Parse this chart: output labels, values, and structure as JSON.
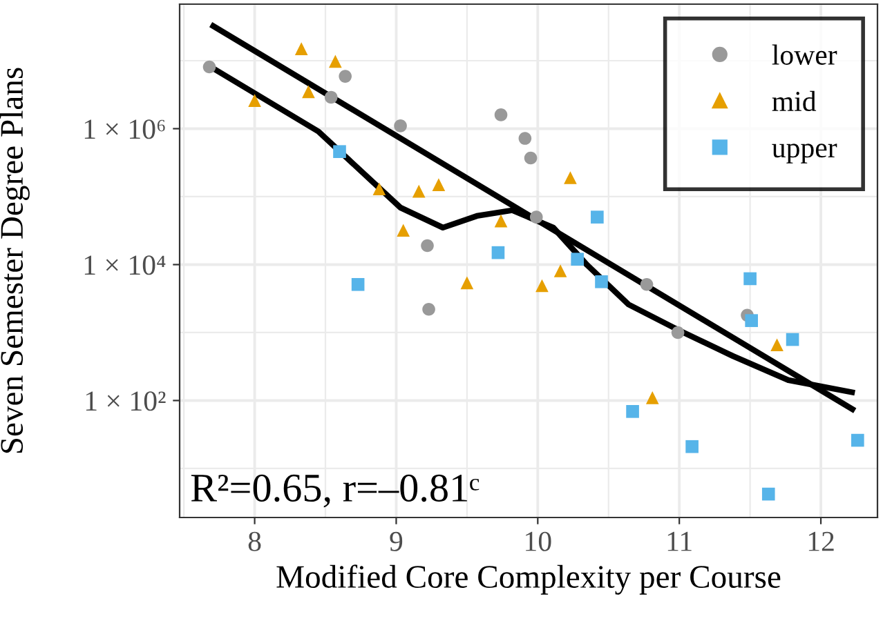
{
  "chart_data": {
    "type": "scatter",
    "xlabel": "Modified Core Complexity per Course",
    "ylabel": "Seven Semester Degree Plans",
    "xlim": [
      7.47,
      12.4
    ],
    "ylim": [
      1.9,
      68000000
    ],
    "xticks": [
      {
        "value": 7.5,
        "label": null
      },
      8,
      {
        "value": 8.5,
        "label": null
      },
      9,
      {
        "value": 9.5,
        "label": null
      },
      10,
      {
        "value": 10.5,
        "label": null
      },
      11,
      {
        "value": 11.5,
        "label": null
      },
      12
    ],
    "yticks": [
      {
        "value": 10,
        "label": null
      },
      {
        "value": 100,
        "label": "1 × 10²"
      },
      {
        "value": 1000,
        "label": null
      },
      {
        "value": 10000,
        "label": "1 × 10⁴"
      },
      {
        "value": 100000,
        "label": null
      },
      {
        "value": 1000000,
        "label": "1 × 10⁶"
      },
      {
        "value": 10000000,
        "label": null
      }
    ],
    "log": "y",
    "grid": true,
    "legend": "top right",
    "series": [
      {
        "name": "lower",
        "color": "#999999",
        "marker": "circle",
        "x": [
          7.68,
          8.54,
          8.64,
          9.03,
          9.74,
          9.91,
          9.95,
          9.99,
          9.22,
          9.23,
          10.77,
          11.48,
          10.99
        ],
        "values": [
          8100000,
          2900000,
          5900000,
          1100000,
          1600000,
          720000,
          370000,
          50000,
          19000,
          2200,
          5100,
          1800,
          1000
        ]
      },
      {
        "name": "mid",
        "color": "#E69F00",
        "marker": "triangle",
        "x": [
          8.0,
          8.33,
          8.38,
          8.57,
          8.88,
          9.05,
          9.16,
          9.3,
          9.74,
          9.5,
          10.03,
          10.16,
          10.23,
          10.81,
          11.69
        ],
        "values": [
          2600000,
          15000000,
          3500000,
          9800000,
          130000,
          32000,
          120000,
          150000,
          44000,
          5400,
          4900,
          8100,
          190000,
          110,
          660
        ]
      },
      {
        "name": "upper",
        "color": "#56B4E9",
        "marker": "square",
        "x": [
          8.6,
          8.73,
          9.72,
          10.42,
          10.28,
          10.45,
          11.5,
          11.51,
          11.8,
          10.67,
          11.09,
          11.63,
          12.26
        ],
        "values": [
          460000,
          5100,
          15000,
          50000,
          12000,
          5600,
          6200,
          1500,
          790,
          69,
          21,
          4.2,
          26
        ]
      },
      {
        "type": "line",
        "color": "#000000",
        "marker": "none",
        "x": [
          7.69,
          12.24
        ],
        "values": [
          34000000,
          71
        ]
      },
      {
        "type": "line",
        "color": "#000000",
        "marker": "none",
        "x": [
          7.69,
          8.45,
          9.03,
          9.33,
          9.57,
          9.82,
          10.11,
          10.35,
          10.64,
          10.99,
          11.38,
          11.77,
          12.24
        ],
        "values": [
          8100000,
          910000,
          69000,
          35000,
          52000,
          63000,
          35000,
          9800,
          2600,
          1100,
          450,
          200,
          130
        ]
      }
    ],
    "annotations": [
      {
        "text": "R²=0.65, r=–0.81ᶜ"
      }
    ]
  }
}
